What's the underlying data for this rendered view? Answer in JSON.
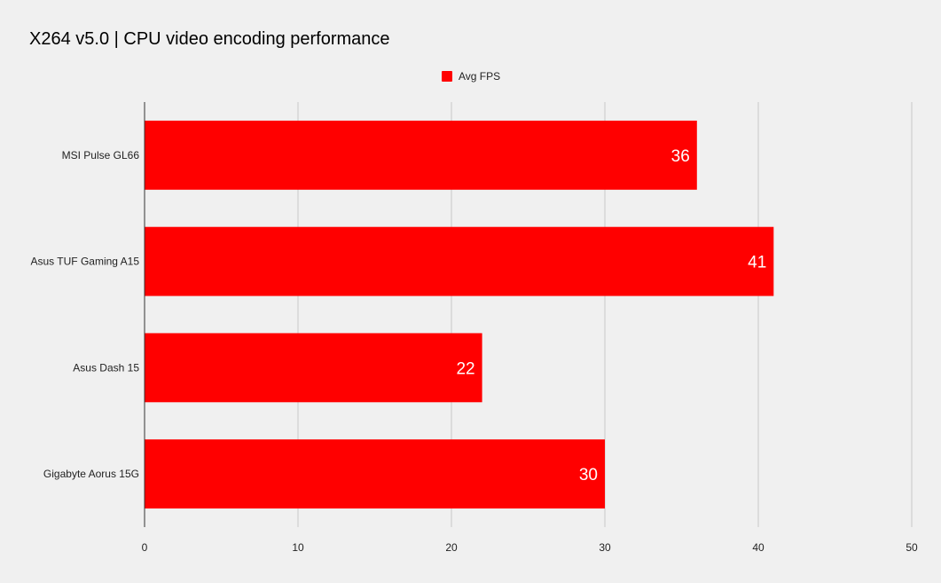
{
  "chart_data": {
    "type": "bar",
    "orientation": "horizontal",
    "title": "X264 v5.0 | CPU video encoding performance",
    "categories": [
      "MSI Pulse GL66",
      "Asus TUF Gaming A15",
      "Asus Dash 15",
      "Gigabyte Aorus 15G"
    ],
    "series": [
      {
        "name": "Avg FPS",
        "values": [
          36,
          41,
          22,
          30
        ],
        "color": "#ff0000"
      }
    ],
    "xlim": [
      0,
      50
    ],
    "xticks": [
      0,
      10,
      20,
      30,
      40,
      50
    ],
    "grid": true,
    "legend_position": "top-center"
  }
}
